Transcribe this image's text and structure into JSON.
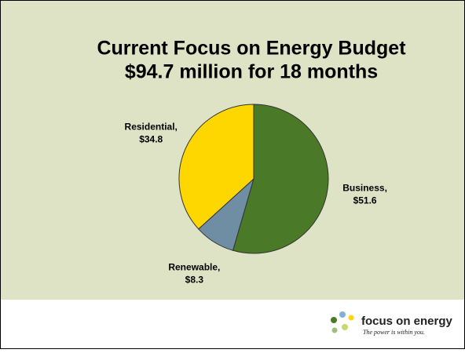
{
  "chart_data": {
    "type": "pie",
    "title": "Current Focus on Energy Budget",
    "subtitle": "$94.7 million for 18 months",
    "categories": [
      "Business,",
      "Renewable,",
      "Residential,"
    ],
    "values": [
      51.6,
      8.3,
      34.8
    ],
    "value_labels": [
      "$51.6",
      "$8.3",
      "$34.8"
    ],
    "colors": [
      "#4a7a28",
      "#6f8ea4",
      "#ffd700"
    ]
  },
  "logo": {
    "name": "focus on energy",
    "tagline": "The power is within you."
  }
}
